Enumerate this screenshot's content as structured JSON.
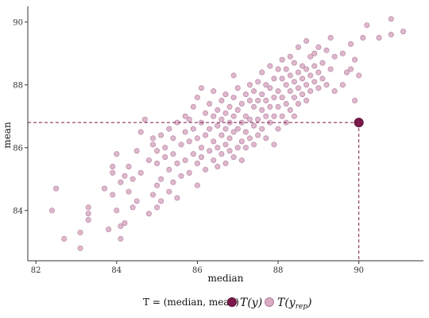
{
  "chart_data": {
    "type": "scatter",
    "xlabel": "median",
    "ylabel": "mean",
    "xlim": [
      81.8,
      91.6
    ],
    "ylim": [
      82.4,
      90.5
    ],
    "x_ticks": [
      82,
      84,
      86,
      88,
      90
    ],
    "y_ticks": [
      84,
      86,
      88,
      90
    ],
    "grid": false,
    "observed": {
      "x": 90.0,
      "y": 86.8
    },
    "replicated_points": [
      [
        82.4,
        84.0
      ],
      [
        82.5,
        84.7
      ],
      [
        82.7,
        83.1
      ],
      [
        83.1,
        82.8
      ],
      [
        83.1,
        83.3
      ],
      [
        83.3,
        83.7
      ],
      [
        83.3,
        83.9
      ],
      [
        83.3,
        84.1
      ],
      [
        83.7,
        84.7
      ],
      [
        83.8,
        83.4
      ],
      [
        83.9,
        84.5
      ],
      [
        83.9,
        85.4
      ],
      [
        83.9,
        85.2
      ],
      [
        84.0,
        84.0
      ],
      [
        84.0,
        85.8
      ],
      [
        84.1,
        83.1
      ],
      [
        84.1,
        83.5
      ],
      [
        84.1,
        84.9
      ],
      [
        84.2,
        83.6
      ],
      [
        84.2,
        85.1
      ],
      [
        84.3,
        84.6
      ],
      [
        84.3,
        85.4
      ],
      [
        84.4,
        84.1
      ],
      [
        84.4,
        85.0
      ],
      [
        84.5,
        85.9
      ],
      [
        84.5,
        84.3
      ],
      [
        84.6,
        85.2
      ],
      [
        84.6,
        86.5
      ],
      [
        84.7,
        86.9
      ],
      [
        84.8,
        83.9
      ],
      [
        84.8,
        85.6
      ],
      [
        84.9,
        84.5
      ],
      [
        84.9,
        86.1
      ],
      [
        84.9,
        86.3
      ],
      [
        85.0,
        84.1
      ],
      [
        85.0,
        84.8
      ],
      [
        85.0,
        85.5
      ],
      [
        85.0,
        85.9
      ],
      [
        85.1,
        84.3
      ],
      [
        85.1,
        86.4
      ],
      [
        85.1,
        85.0
      ],
      [
        85.2,
        85.7
      ],
      [
        85.2,
        86.0
      ],
      [
        85.3,
        84.6
      ],
      [
        85.3,
        85.3
      ],
      [
        85.3,
        86.6
      ],
      [
        85.4,
        84.9
      ],
      [
        85.4,
        85.8
      ],
      [
        85.4,
        86.3
      ],
      [
        85.5,
        84.4
      ],
      [
        85.5,
        85.5
      ],
      [
        85.5,
        86.8
      ],
      [
        85.6,
        85.1
      ],
      [
        85.6,
        86.1
      ],
      [
        85.7,
        85.6
      ],
      [
        85.7,
        86.5
      ],
      [
        85.7,
        87.0
      ],
      [
        85.8,
        85.2
      ],
      [
        85.8,
        86.2
      ],
      [
        85.8,
        86.9
      ],
      [
        85.9,
        85.8
      ],
      [
        85.9,
        86.6
      ],
      [
        85.9,
        87.3
      ],
      [
        86.0,
        84.8
      ],
      [
        86.0,
        85.5
      ],
      [
        86.0,
        86.3
      ],
      [
        86.0,
        87.6
      ],
      [
        86.1,
        85.7
      ],
      [
        86.1,
        86.0
      ],
      [
        86.1,
        86.8
      ],
      [
        86.1,
        87.9
      ],
      [
        86.2,
        85.3
      ],
      [
        86.2,
        86.4
      ],
      [
        86.2,
        87.1
      ],
      [
        86.3,
        85.9
      ],
      [
        86.3,
        86.6
      ],
      [
        86.3,
        87.4
      ],
      [
        86.4,
        85.6
      ],
      [
        86.4,
        86.2
      ],
      [
        86.4,
        87.0
      ],
      [
        86.4,
        87.8
      ],
      [
        86.5,
        85.4
      ],
      [
        86.5,
        86.0
      ],
      [
        86.5,
        86.7
      ],
      [
        86.5,
        87.2
      ],
      [
        86.6,
        85.8
      ],
      [
        86.6,
        86.4
      ],
      [
        86.6,
        86.9
      ],
      [
        86.6,
        87.5
      ],
      [
        86.7,
        85.5
      ],
      [
        86.7,
        86.1
      ],
      [
        86.7,
        86.6
      ],
      [
        86.7,
        87.1
      ],
      [
        86.7,
        87.7
      ],
      [
        86.8,
        85.9
      ],
      [
        86.8,
        86.3
      ],
      [
        86.8,
        86.8
      ],
      [
        86.8,
        87.3
      ],
      [
        86.9,
        85.7
      ],
      [
        86.9,
        86.5
      ],
      [
        86.9,
        87.0
      ],
      [
        86.9,
        87.6
      ],
      [
        86.9,
        88.3
      ],
      [
        87.0,
        86.0
      ],
      [
        87.0,
        86.6
      ],
      [
        87.0,
        87.2
      ],
      [
        87.0,
        87.9
      ],
      [
        87.1,
        85.6
      ],
      [
        87.1,
        86.2
      ],
      [
        87.1,
        86.8
      ],
      [
        87.1,
        87.4
      ],
      [
        87.2,
        86.0
      ],
      [
        87.2,
        86.5
      ],
      [
        87.2,
        87.0
      ],
      [
        87.2,
        87.7
      ],
      [
        87.3,
        86.3
      ],
      [
        87.3,
        86.9
      ],
      [
        87.3,
        87.5
      ],
      [
        87.3,
        88.0
      ],
      [
        87.4,
        86.1
      ],
      [
        87.4,
        86.7
      ],
      [
        87.4,
        87.3
      ],
      [
        87.4,
        87.8
      ],
      [
        87.5,
        86.4
      ],
      [
        87.5,
        86.9
      ],
      [
        87.5,
        87.5
      ],
      [
        87.5,
        88.1
      ],
      [
        87.6,
        86.6
      ],
      [
        87.6,
        87.2
      ],
      [
        87.6,
        87.7
      ],
      [
        87.6,
        88.4
      ],
      [
        87.7,
        86.3
      ],
      [
        87.7,
        87.0
      ],
      [
        87.7,
        87.5
      ],
      [
        87.7,
        88.0
      ],
      [
        87.8,
        86.8
      ],
      [
        87.8,
        87.3
      ],
      [
        87.8,
        87.9
      ],
      [
        87.8,
        88.6
      ],
      [
        87.9,
        86.1
      ],
      [
        87.9,
        87.0
      ],
      [
        87.9,
        87.6
      ],
      [
        87.9,
        88.2
      ],
      [
        88.0,
        86.6
      ],
      [
        88.0,
        87.3
      ],
      [
        88.0,
        87.8
      ],
      [
        88.0,
        88.5
      ],
      [
        88.1,
        87.0
      ],
      [
        88.1,
        87.6
      ],
      [
        88.1,
        88.2
      ],
      [
        88.1,
        88.8
      ],
      [
        88.2,
        86.8
      ],
      [
        88.2,
        87.4
      ],
      [
        88.2,
        88.0
      ],
      [
        88.2,
        88.5
      ],
      [
        88.3,
        87.2
      ],
      [
        88.3,
        87.8
      ],
      [
        88.3,
        88.3
      ],
      [
        88.3,
        88.9
      ],
      [
        88.4,
        87.0
      ],
      [
        88.4,
        87.6
      ],
      [
        88.4,
        88.1
      ],
      [
        88.4,
        88.7
      ],
      [
        88.5,
        87.4
      ],
      [
        88.5,
        87.9
      ],
      [
        88.5,
        88.4
      ],
      [
        88.5,
        89.2
      ],
      [
        88.6,
        87.7
      ],
      [
        88.6,
        88.2
      ],
      [
        88.6,
        88.6
      ],
      [
        88.7,
        87.5
      ],
      [
        88.7,
        88.0
      ],
      [
        88.7,
        88.5
      ],
      [
        88.7,
        89.4
      ],
      [
        88.8,
        87.8
      ],
      [
        88.8,
        88.3
      ],
      [
        88.8,
        88.9
      ],
      [
        88.9,
        88.1
      ],
      [
        88.9,
        88.6
      ],
      [
        88.9,
        89.0
      ],
      [
        89.0,
        87.9
      ],
      [
        89.0,
        88.4
      ],
      [
        89.0,
        89.2
      ],
      [
        89.1,
        88.2
      ],
      [
        89.1,
        88.7
      ],
      [
        89.2,
        88.0
      ],
      [
        89.2,
        89.1
      ],
      [
        89.3,
        88.5
      ],
      [
        89.3,
        89.5
      ],
      [
        89.4,
        87.8
      ],
      [
        89.4,
        88.9
      ],
      [
        89.6,
        88.0
      ],
      [
        89.6,
        89.0
      ],
      [
        89.7,
        88.4
      ],
      [
        89.8,
        88.5
      ],
      [
        89.8,
        89.3
      ],
      [
        89.9,
        87.5
      ],
      [
        89.9,
        88.8
      ],
      [
        90.0,
        88.3
      ],
      [
        90.1,
        89.5
      ],
      [
        90.2,
        89.9
      ],
      [
        90.5,
        89.5
      ],
      [
        90.8,
        89.6
      ],
      [
        90.8,
        90.1
      ],
      [
        91.1,
        89.7
      ]
    ]
  },
  "legend": {
    "prefix": "T = (median, mean)",
    "observed_label": "T(y)",
    "replicated_label": "T(y",
    "replicated_sub": "rep",
    "replicated_close": ")"
  },
  "colors": {
    "observed_fill": "#7b1a4a",
    "observed_stroke": "#5a0f36",
    "replicated_fill": "#d9aac4",
    "replicated_stroke": "#b0829d",
    "reference_line": "#7b1a4a",
    "axis": "#333333"
  }
}
